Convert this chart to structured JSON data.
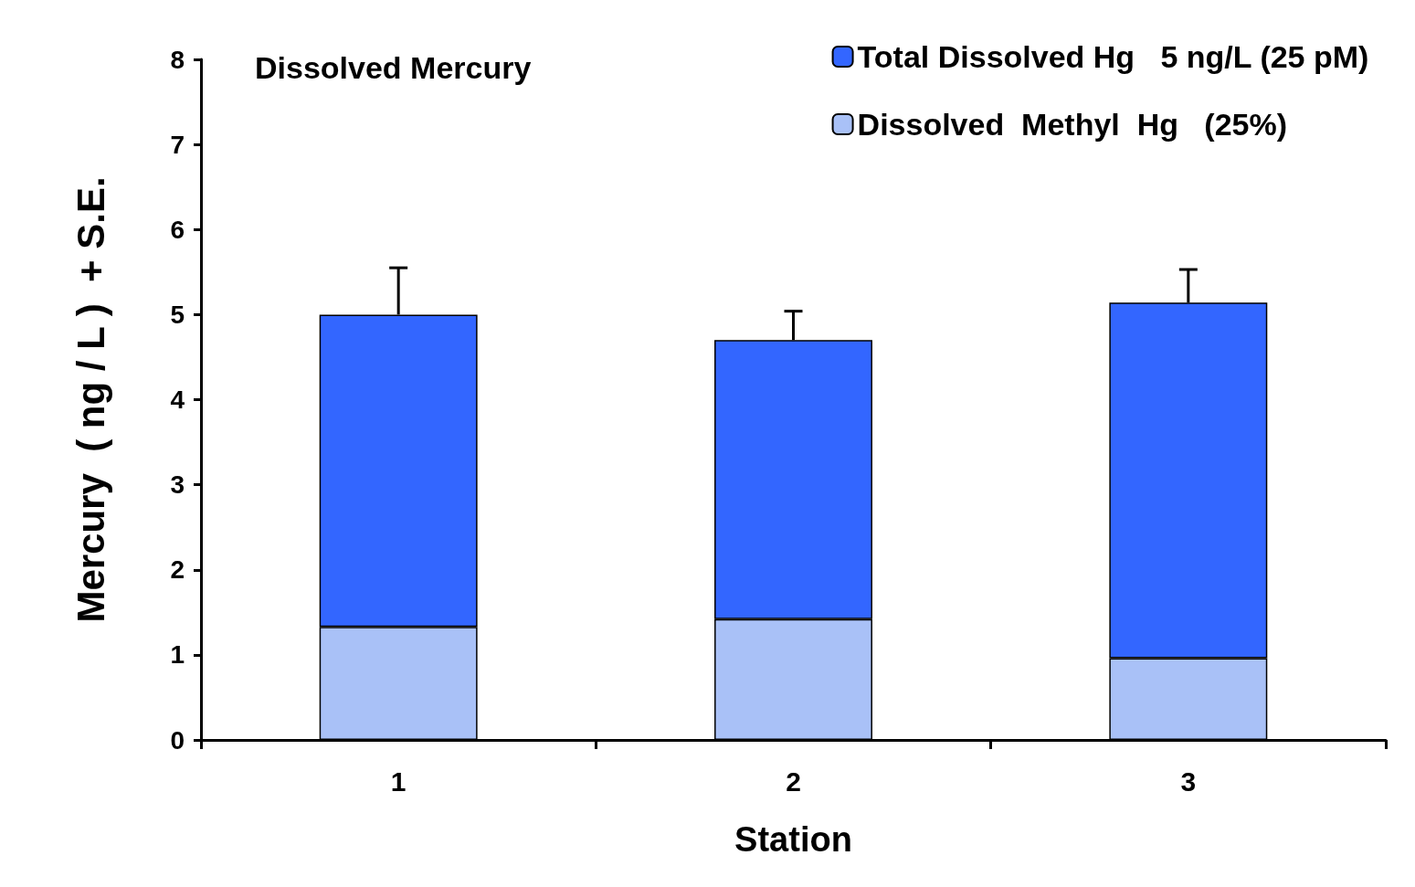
{
  "chart_data": {
    "type": "bar",
    "title": "Dissolved Mercury",
    "xlabel": "Station",
    "ylabel": "Mercury  ( ng / L )  + S.E.",
    "categories": [
      "1",
      "2",
      "3"
    ],
    "stacked": true,
    "ylim": [
      0,
      8
    ],
    "yticks": [
      0,
      1,
      2,
      3,
      4,
      5,
      6,
      7,
      8
    ],
    "grid": false,
    "legend": "top right",
    "series": [
      {
        "name": "Dissolved  Methyl  Hg   (25%)",
        "color": "#a9c1f7",
        "values": [
          1.33,
          1.42,
          0.96
        ]
      },
      {
        "name": "Total Dissolved Hg   5 ng/L (25 pM)",
        "color": "#3366ff",
        "values": [
          3.67,
          3.28,
          4.18
        ],
        "errors": [
          [
            5.0,
            5.55
          ],
          [
            4.7,
            5.04
          ],
          [
            5.14,
            5.53
          ]
        ]
      }
    ]
  }
}
